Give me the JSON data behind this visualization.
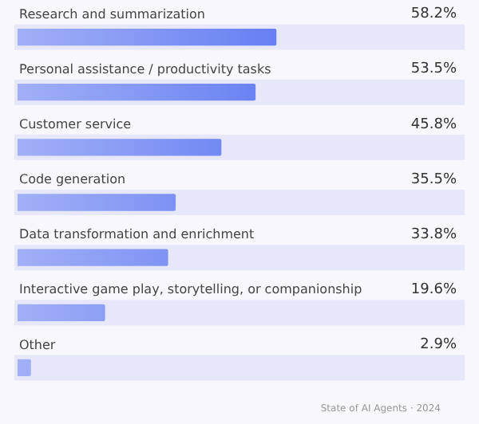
{
  "chart_data": {
    "type": "bar",
    "orientation": "horizontal",
    "categories": [
      "Research and summarization",
      "Personal assistance / productivity tasks",
      "Customer service",
      "Code generation",
      "Data transformation and enrichment",
      "Interactive game play, storytelling, or companionship",
      "Other"
    ],
    "values": [
      58.2,
      53.5,
      45.8,
      35.5,
      33.8,
      19.6,
      2.9
    ],
    "value_labels": [
      "58.2%",
      "53.5%",
      "45.8%",
      "35.5%",
      "33.8%",
      "19.6%",
      "2.9%"
    ],
    "color": "#3b5bf0",
    "xlim": [
      0,
      100
    ],
    "legend": false,
    "tick_labels": false,
    "annotations": [
      "State of AI Agents · 2024"
    ]
  }
}
